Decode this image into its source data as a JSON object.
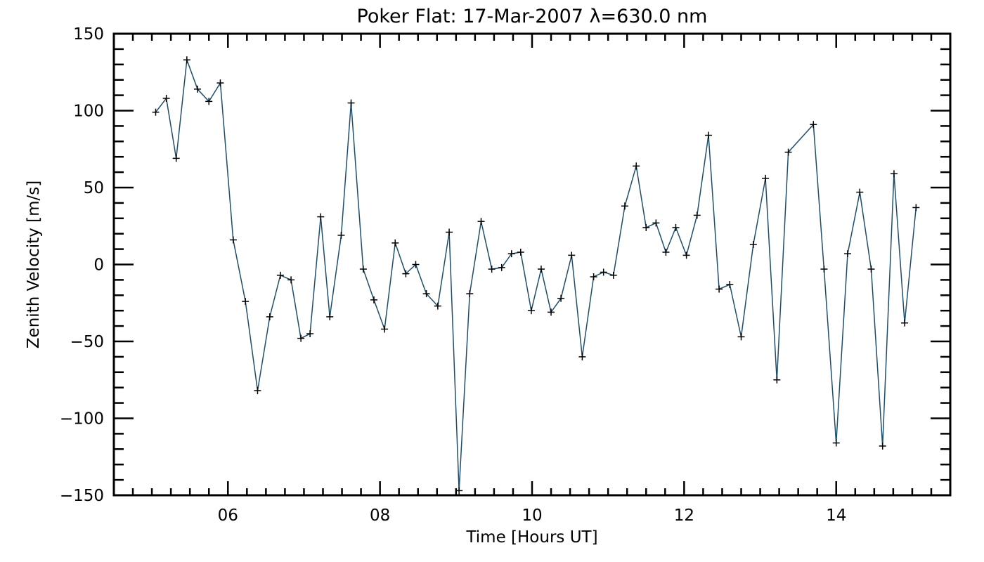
{
  "chart_data": {
    "type": "line",
    "title": "Poker Flat: 17-Mar-2007 λ=630.0 nm",
    "xlabel": "Time [Hours UT]",
    "ylabel": "Zenith Velocity [m/s]",
    "xlim": [
      4.5,
      15.5
    ],
    "ylim": [
      -150,
      150
    ],
    "x_ticks": [
      6,
      8,
      10,
      12,
      14
    ],
    "x_tick_labels": [
      "06",
      "08",
      "10",
      "12",
      "14"
    ],
    "y_ticks": [
      -150,
      -100,
      -50,
      0,
      50,
      100,
      150
    ],
    "y_tick_labels": [
      "−150",
      "−100",
      "−50",
      "0",
      "50",
      "100",
      "150"
    ],
    "grid": false,
    "line_color": "#1f4e6b",
    "marker": "+",
    "series": [
      {
        "name": "Zenith Velocity",
        "x": [
          5.05,
          5.19,
          5.32,
          5.46,
          5.6,
          5.75,
          5.9,
          6.07,
          6.23,
          6.39,
          6.55,
          6.69,
          6.83,
          6.96,
          7.08,
          7.22,
          7.34,
          7.49,
          7.62,
          7.78,
          7.92,
          8.06,
          8.2,
          8.34,
          8.47,
          8.61,
          8.76,
          8.91,
          9.04,
          9.18,
          9.33,
          9.47,
          9.6,
          9.73,
          9.85,
          9.99,
          10.12,
          10.25,
          10.38,
          10.52,
          10.66,
          10.81,
          10.94,
          11.07,
          11.22,
          11.37,
          11.5,
          11.63,
          11.76,
          11.89,
          12.03,
          12.17,
          12.32,
          12.46,
          12.6,
          12.75,
          12.91,
          13.07,
          13.22,
          13.37,
          13.7,
          13.84,
          14.0,
          14.15,
          14.31,
          14.46,
          14.61,
          14.76,
          14.9,
          15.05
        ],
        "y": [
          99,
          108,
          69,
          133,
          114,
          106,
          118,
          16,
          -24,
          -82,
          -34,
          -7,
          -10,
          -48,
          -45,
          31,
          -34,
          19,
          105,
          -3,
          -23,
          -42,
          14,
          -6,
          0,
          -19,
          -27,
          21,
          -147,
          -19,
          28,
          -3,
          -2,
          7,
          8,
          -30,
          -3,
          -31,
          -22,
          6,
          -60,
          -8,
          -5,
          -7,
          38,
          64,
          24,
          27,
          8,
          24,
          6,
          32,
          84,
          -16,
          -13,
          -47,
          13,
          56,
          -75,
          73,
          91,
          -3,
          -116,
          7,
          47,
          -3,
          -118,
          59,
          -38,
          37
        ]
      }
    ]
  }
}
